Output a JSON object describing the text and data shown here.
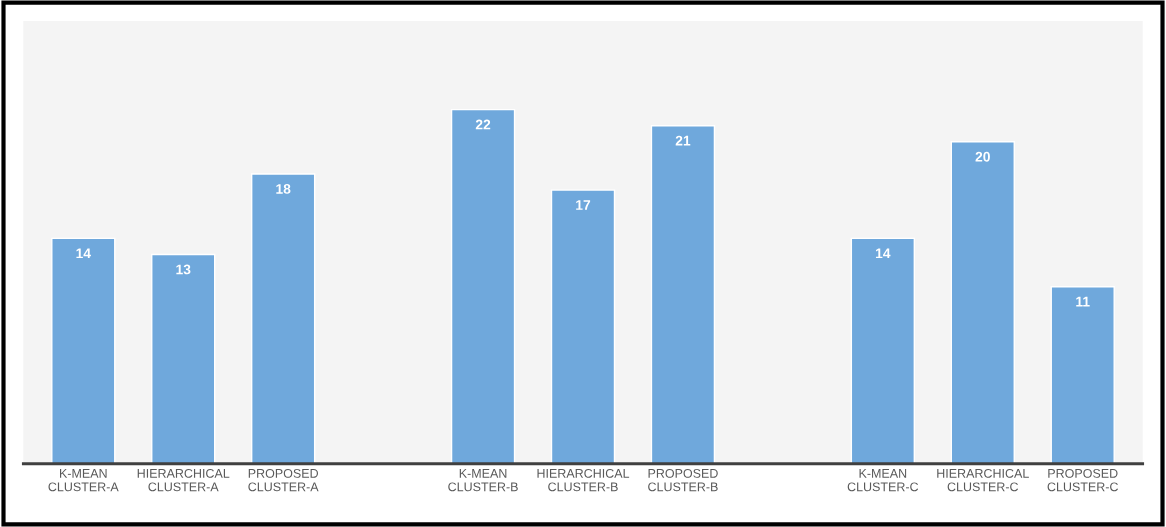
{
  "chart_data": {
    "type": "bar",
    "categories": [
      "K-MEAN\nCLUSTER-A",
      "HIERARCHICAL\nCLUSTER-A",
      "PROPOSED\nCLUSTER-A",
      null,
      "K-MEAN\nCLUSTER-B",
      "HIERARCHICAL\nCLUSTER-B",
      "PROPOSED\nCLUSTER-B",
      null,
      "K-MEAN\nCLUSTER-C",
      "HIERARCHICAL\nCLUSTER-C",
      "PROPOSED\nCLUSTER-C"
    ],
    "values": [
      14,
      13,
      18,
      null,
      22,
      17,
      21,
      null,
      14,
      20,
      11
    ],
    "color": "#6fa8dc",
    "data_labels": true,
    "grid": false,
    "legend": false,
    "tick_labels": "x"
  }
}
